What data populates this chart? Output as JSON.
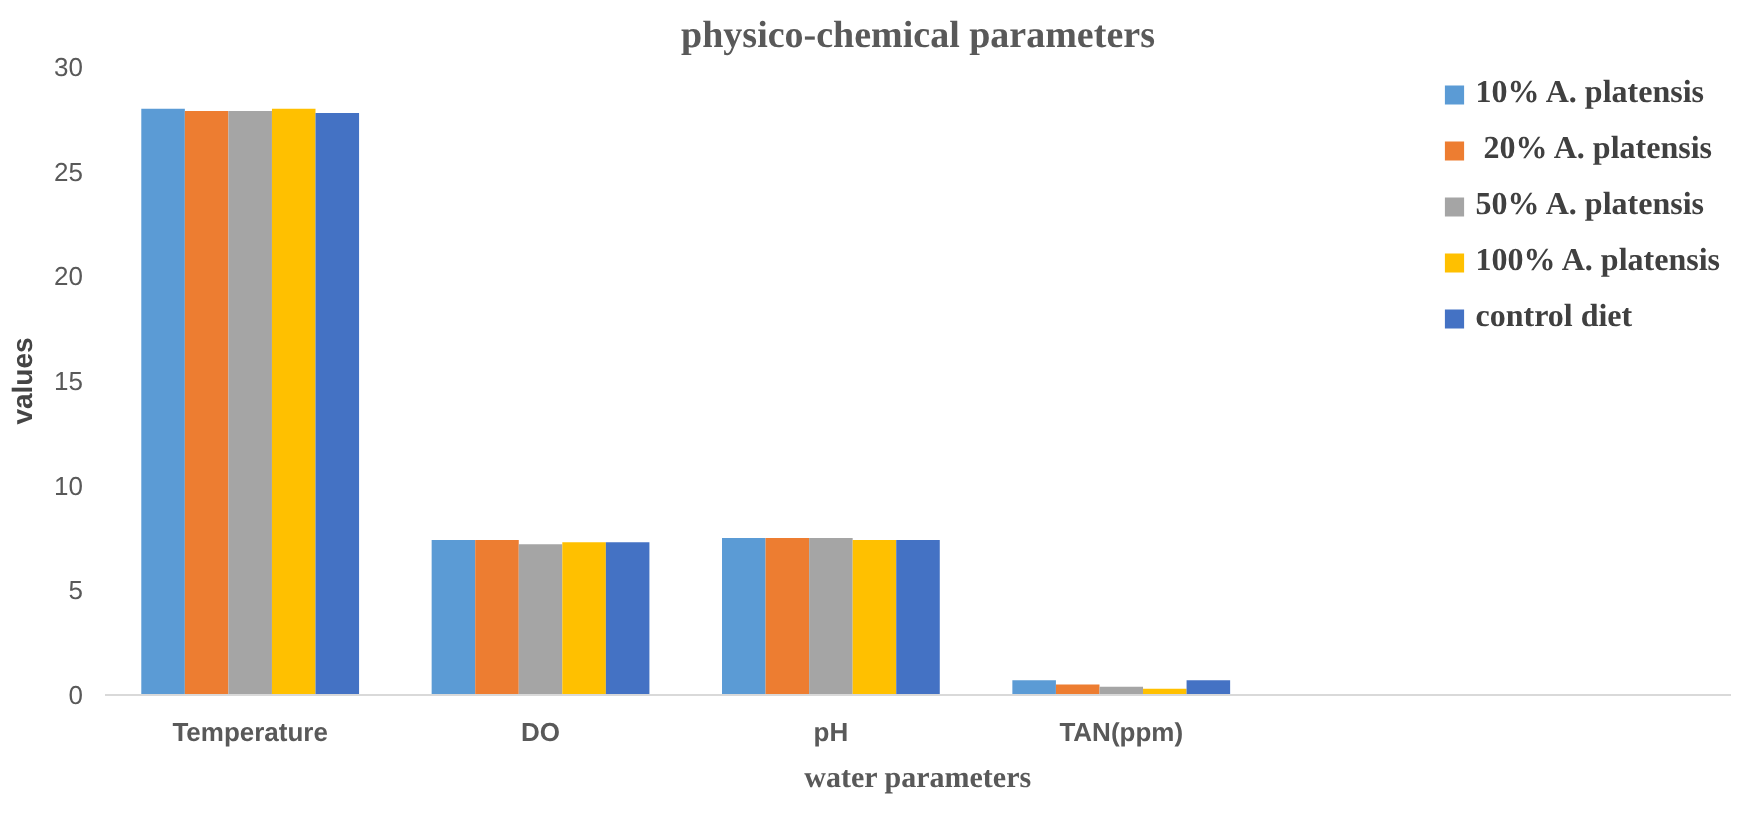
{
  "chart_data": {
    "type": "bar",
    "title": "physico-chemical parameters",
    "xlabel": "water parameters",
    "ylabel": "values",
    "categories": [
      "Temperature",
      "DO",
      "pH",
      "TAN(ppm)"
    ],
    "series": [
      {
        "name": "10% A. platensis",
        "color": "#5b9bd5",
        "values": [
          28.0,
          7.4,
          7.5,
          0.7
        ]
      },
      {
        "name": " 20% A. platensis",
        "color": "#ed7d31",
        "values": [
          27.9,
          7.4,
          7.5,
          0.5
        ]
      },
      {
        "name": "50% A. platensis",
        "color": "#a5a5a5",
        "values": [
          27.9,
          7.2,
          7.5,
          0.4
        ]
      },
      {
        "name": "100% A. platensis",
        "color": "#ffc000",
        "values": [
          28.0,
          7.3,
          7.4,
          0.3
        ]
      },
      {
        "name": "control diet",
        "color": "#4472c4",
        "values": [
          27.8,
          7.3,
          7.4,
          0.7
        ]
      }
    ],
    "ylim": [
      0,
      30
    ],
    "yticks": [
      0,
      5,
      10,
      15,
      20,
      25,
      30
    ],
    "grid": false,
    "legend": "right"
  }
}
